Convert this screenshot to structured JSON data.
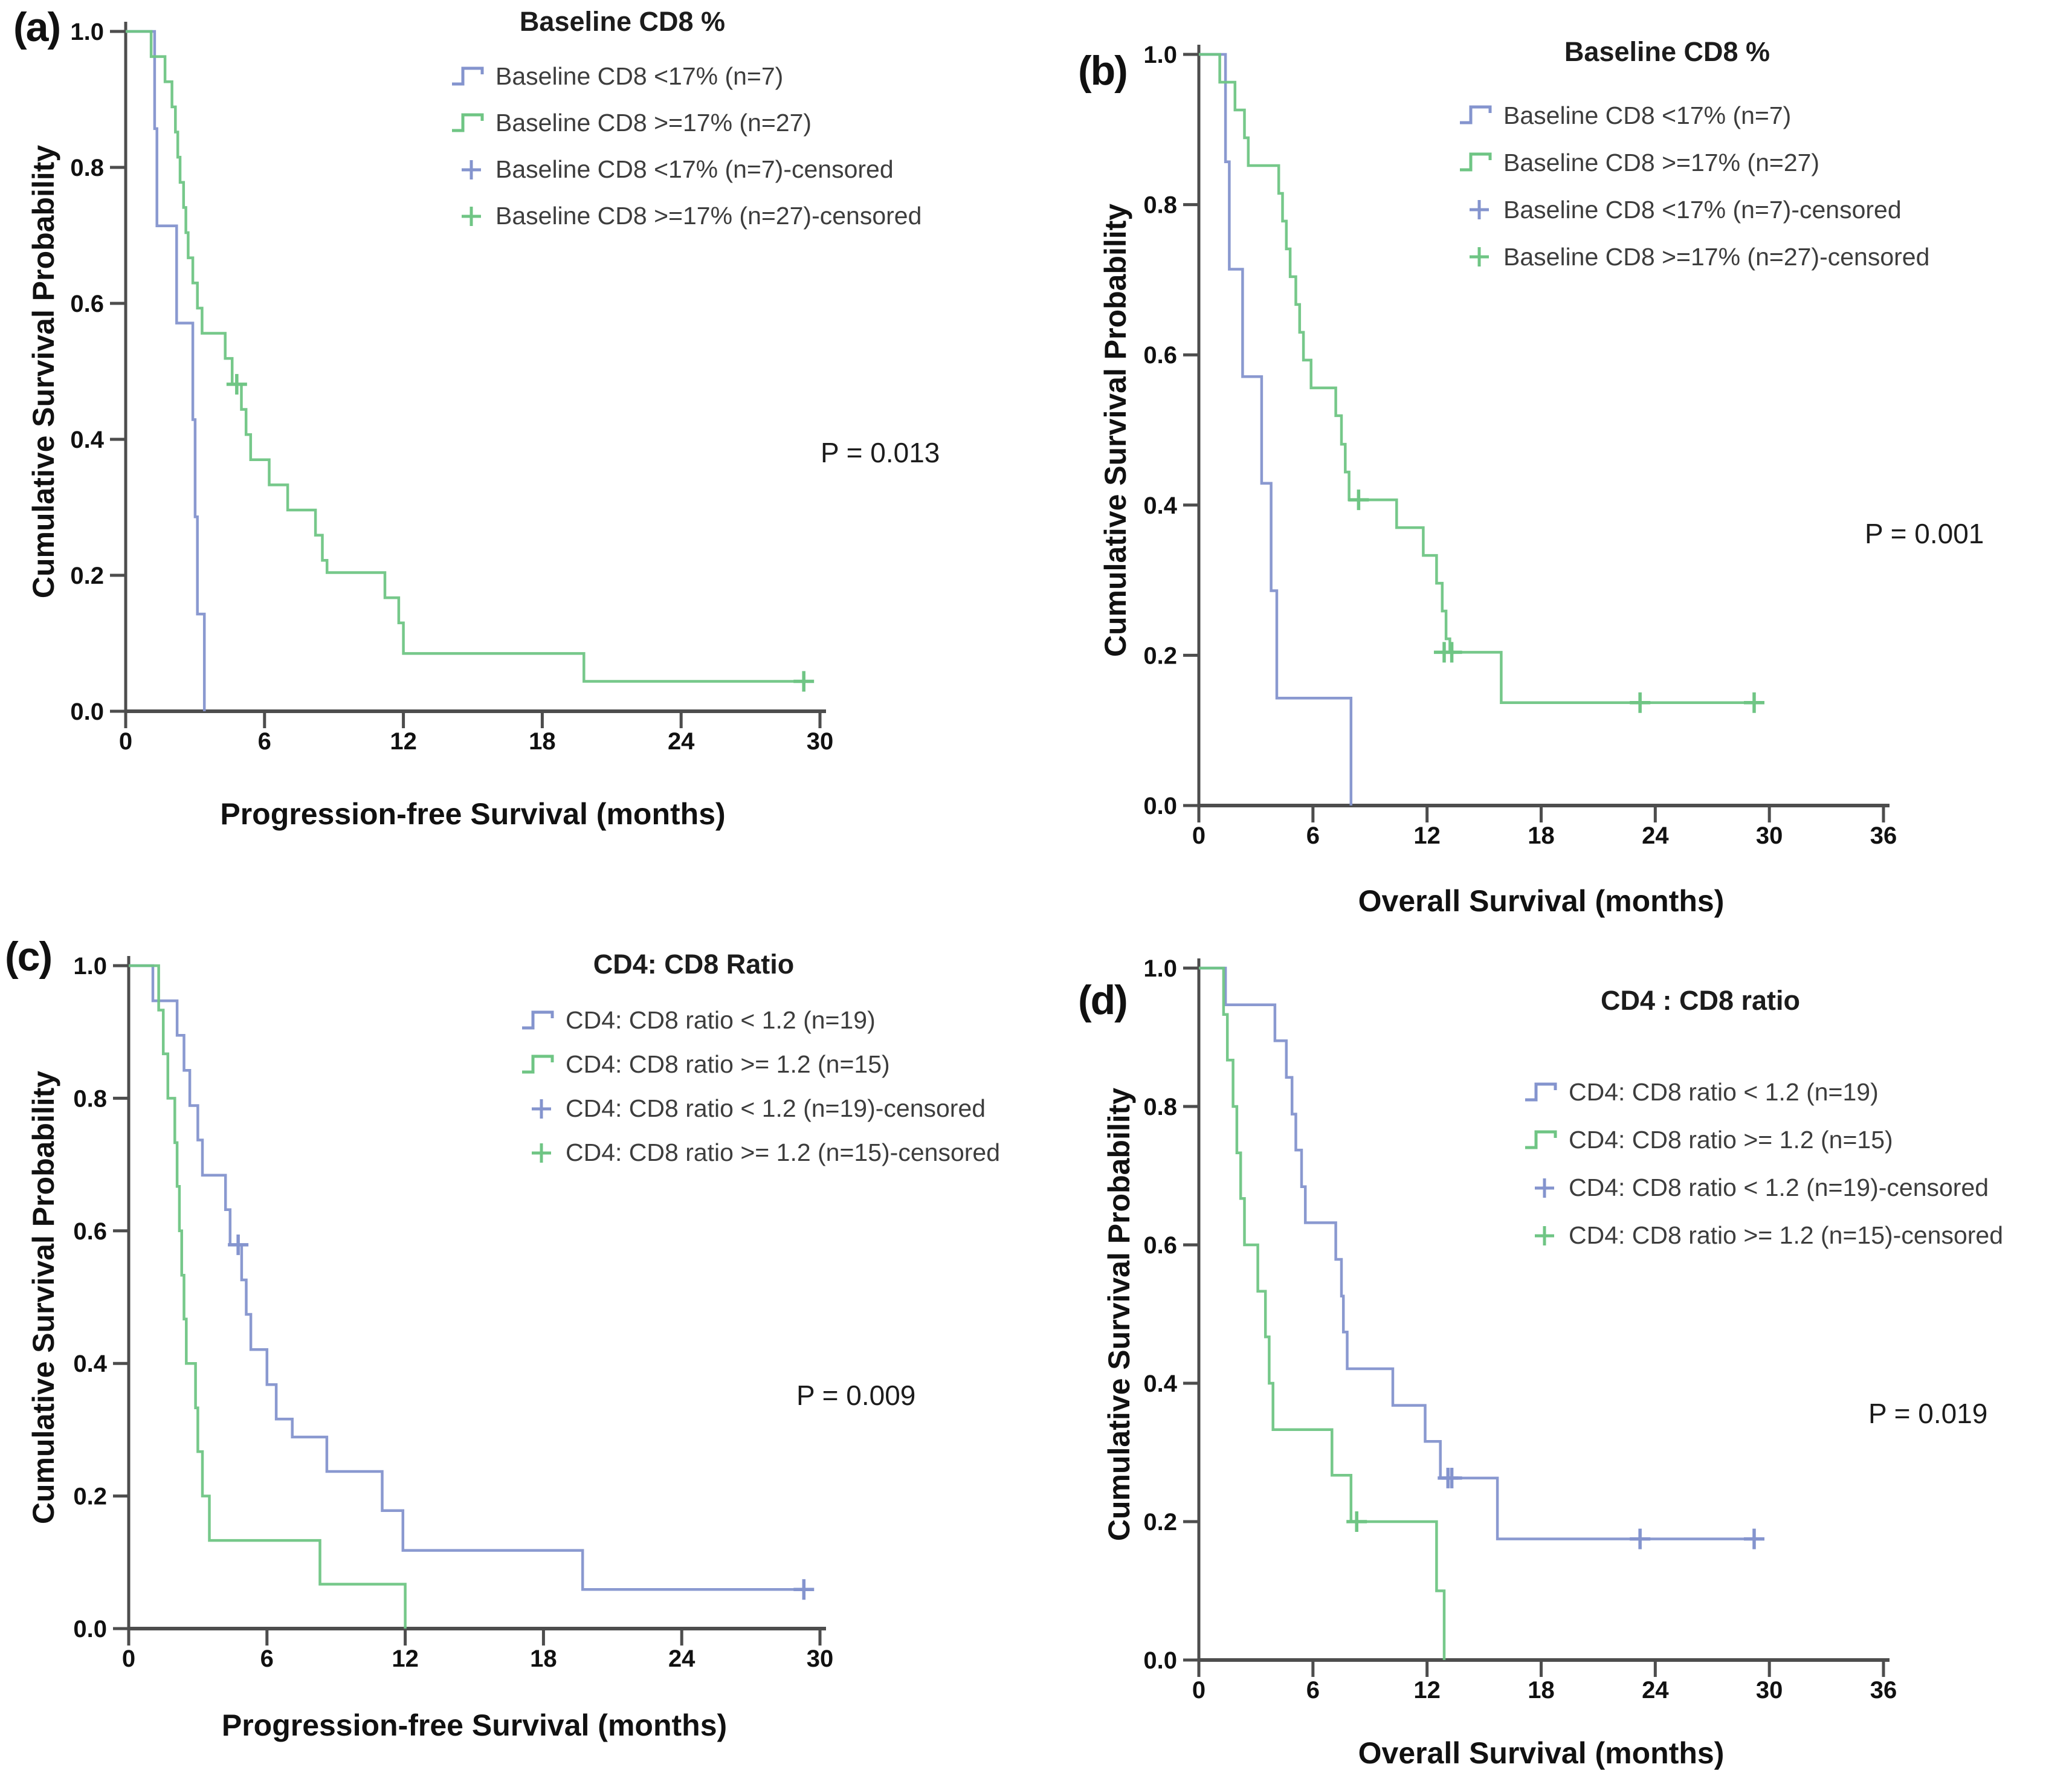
{
  "colors": {
    "blue": "#8494ce",
    "green": "#6fc584",
    "axis": "#4d4d4d",
    "tick_text": "#111111",
    "legend_text": "#3d3d3d"
  },
  "chart_data": [
    {
      "type": "line",
      "subtype": "kaplan-meier-step",
      "panel_label": "(a)",
      "title": "Baseline CD8 %",
      "p_value_label": "P = 0.013",
      "xlabel": "Progression-free Survival (months)",
      "ylabel": "Cumulative Survival Probability",
      "xlim": [
        0,
        30
      ],
      "ylim": [
        0,
        1
      ],
      "xticks": [
        "0",
        "6",
        "12",
        "18",
        "24",
        "30"
      ],
      "xtick_values": [
        0,
        6,
        12,
        18,
        24,
        30
      ],
      "yticks": [
        "0.0",
        "0.2",
        "0.4",
        "0.6",
        "0.8",
        "1.0"
      ],
      "ytick_values": [
        0,
        0.2,
        0.4,
        0.6,
        0.8,
        1.0
      ],
      "legend_position": "top-right",
      "grid": false,
      "legend": [
        {
          "label": "Baseline CD8 <17% (n=7)",
          "color_key": "blue",
          "marker": "step"
        },
        {
          "label": "Baseline CD8 >=17% (n=27)",
          "color_key": "green",
          "marker": "step"
        },
        {
          "label": "Baseline CD8 <17% (n=7)-censored",
          "color_key": "blue",
          "marker": "plus"
        },
        {
          "label": "Baseline CD8 >=17% (n=27)-censored",
          "color_key": "green",
          "marker": "plus"
        }
      ],
      "series": [
        {
          "name": "Baseline CD8 <17% (n=7)",
          "color_key": "blue",
          "start": [
            0,
            1.0
          ],
          "events": [
            [
              1.25,
              0.857
            ],
            [
              1.35,
              0.714
            ],
            [
              2.2,
              0.571
            ],
            [
              2.9,
              0.429
            ],
            [
              3.0,
              0.286
            ],
            [
              3.1,
              0.143
            ],
            [
              3.4,
              0.0
            ]
          ],
          "end_x": 3.4,
          "censored": []
        },
        {
          "name": "Baseline CD8 >=17% (n=27)",
          "color_key": "green",
          "start": [
            0,
            1.0
          ],
          "events": [
            [
              1.1,
              0.963
            ],
            [
              1.7,
              0.926
            ],
            [
              2.0,
              0.889
            ],
            [
              2.15,
              0.852
            ],
            [
              2.25,
              0.815
            ],
            [
              2.35,
              0.778
            ],
            [
              2.5,
              0.741
            ],
            [
              2.6,
              0.704
            ],
            [
              2.7,
              0.667
            ],
            [
              2.9,
              0.63
            ],
            [
              3.1,
              0.593
            ],
            [
              3.3,
              0.556
            ],
            [
              4.3,
              0.519
            ],
            [
              4.6,
              0.481
            ],
            [
              5.0,
              0.444
            ],
            [
              5.2,
              0.407
            ],
            [
              5.4,
              0.37
            ],
            [
              6.2,
              0.333
            ],
            [
              7.0,
              0.296
            ],
            [
              8.2,
              0.259
            ],
            [
              8.5,
              0.222
            ],
            [
              8.7,
              0.204
            ],
            [
              11.2,
              0.167
            ],
            [
              11.8,
              0.13
            ],
            [
              12.0,
              0.085
            ],
            [
              19.8,
              0.044
            ]
          ],
          "end_x": 29.5,
          "censored": [
            [
              4.8,
              0.481
            ],
            [
              29.3,
              0.044
            ]
          ]
        }
      ]
    },
    {
      "type": "line",
      "subtype": "kaplan-meier-step",
      "panel_label": "(b)",
      "title": "Baseline CD8 %",
      "p_value_label": "P = 0.001",
      "xlabel": "Overall Survival (months)",
      "ylabel": "Cumulative Survival Probability",
      "xlim": [
        0,
        36
      ],
      "ylim": [
        0,
        1
      ],
      "xticks": [
        "0",
        "6",
        "12",
        "18",
        "24",
        "30",
        "36"
      ],
      "xtick_values": [
        0,
        6,
        12,
        18,
        24,
        30,
        36
      ],
      "yticks": [
        "0.0",
        "0.2",
        "0.4",
        "0.6",
        "0.8",
        "1.0"
      ],
      "ytick_values": [
        0,
        0.2,
        0.4,
        0.6,
        0.8,
        1.0
      ],
      "legend_position": "top-right",
      "grid": false,
      "legend": [
        {
          "label": "Baseline CD8 <17% (n=7)",
          "color_key": "blue",
          "marker": "step"
        },
        {
          "label": "Baseline CD8 >=17% (n=27)",
          "color_key": "green",
          "marker": "step"
        },
        {
          "label": "Baseline CD8 <17% (n=7)-censored",
          "color_key": "blue",
          "marker": "plus"
        },
        {
          "label": "Baseline CD8 >=17% (n=27)-censored",
          "color_key": "green",
          "marker": "plus"
        }
      ],
      "series": [
        {
          "name": "Baseline CD8 <17% (n=7)",
          "color_key": "blue",
          "start": [
            0,
            1.0
          ],
          "events": [
            [
              1.4,
              0.857
            ],
            [
              1.6,
              0.714
            ],
            [
              2.3,
              0.571
            ],
            [
              3.3,
              0.429
            ],
            [
              3.8,
              0.286
            ],
            [
              4.1,
              0.143
            ],
            [
              8.0,
              0.0
            ]
          ],
          "end_x": 8.0,
          "censored": []
        },
        {
          "name": "Baseline CD8 >=17% (n=27)",
          "color_key": "green",
          "start": [
            0,
            1.0
          ],
          "events": [
            [
              1.1,
              0.963
            ],
            [
              1.9,
              0.926
            ],
            [
              2.4,
              0.889
            ],
            [
              2.6,
              0.852
            ],
            [
              4.2,
              0.815
            ],
            [
              4.4,
              0.778
            ],
            [
              4.6,
              0.741
            ],
            [
              4.8,
              0.704
            ],
            [
              5.1,
              0.667
            ],
            [
              5.3,
              0.63
            ],
            [
              5.5,
              0.593
            ],
            [
              5.9,
              0.556
            ],
            [
              7.2,
              0.519
            ],
            [
              7.5,
              0.481
            ],
            [
              7.7,
              0.444
            ],
            [
              7.9,
              0.407
            ],
            [
              10.4,
              0.37
            ],
            [
              11.8,
              0.333
            ],
            [
              12.5,
              0.296
            ],
            [
              12.8,
              0.259
            ],
            [
              13.0,
              0.222
            ],
            [
              13.2,
              0.204
            ],
            [
              15.9,
              0.137
            ]
          ],
          "end_x": 29.4,
          "censored": [
            [
              8.4,
              0.407
            ],
            [
              12.9,
              0.204
            ],
            [
              13.3,
              0.204
            ],
            [
              23.2,
              0.137
            ],
            [
              29.2,
              0.137
            ]
          ]
        }
      ]
    },
    {
      "type": "line",
      "subtype": "kaplan-meier-step",
      "panel_label": "(c)",
      "title": "CD4: CD8 Ratio",
      "p_value_label": "P = 0.009",
      "xlabel": "Progression-free Survival (months)",
      "ylabel": "Cumulative Survival Probability",
      "xlim": [
        0,
        30
      ],
      "ylim": [
        0,
        1
      ],
      "xticks": [
        "0",
        "6",
        "12",
        "18",
        "24",
        "30"
      ],
      "xtick_values": [
        0,
        6,
        12,
        18,
        24,
        30
      ],
      "yticks": [
        "0.0",
        "0.2",
        "0.4",
        "0.6",
        "0.8",
        "1.0"
      ],
      "ytick_values": [
        0,
        0.2,
        0.4,
        0.6,
        0.8,
        1.0
      ],
      "legend_position": "top-right",
      "grid": false,
      "legend": [
        {
          "label": "CD4: CD8 ratio < 1.2 (n=19)",
          "color_key": "blue",
          "marker": "step"
        },
        {
          "label": "CD4: CD8 ratio >= 1.2 (n=15)",
          "color_key": "green",
          "marker": "step"
        },
        {
          "label": "CD4: CD8 ratio < 1.2 (n=19)-censored",
          "color_key": "blue",
          "marker": "plus"
        },
        {
          "label": "CD4: CD8 ratio >= 1.2 (n=15)-censored",
          "color_key": "green",
          "marker": "plus"
        }
      ],
      "series": [
        {
          "name": "CD4: CD8 ratio < 1.2 (n=19)",
          "color_key": "blue",
          "start": [
            0,
            1.0
          ],
          "events": [
            [
              1.05,
              0.947
            ],
            [
              2.1,
              0.895
            ],
            [
              2.4,
              0.842
            ],
            [
              2.65,
              0.789
            ],
            [
              3.0,
              0.737
            ],
            [
              3.2,
              0.684
            ],
            [
              4.2,
              0.632
            ],
            [
              4.4,
              0.579
            ],
            [
              4.9,
              0.526
            ],
            [
              5.1,
              0.474
            ],
            [
              5.3,
              0.421
            ],
            [
              6.0,
              0.368
            ],
            [
              6.4,
              0.316
            ],
            [
              7.1,
              0.289
            ],
            [
              8.6,
              0.237
            ],
            [
              11.0,
              0.178
            ],
            [
              11.9,
              0.118
            ],
            [
              19.7,
              0.059
            ]
          ],
          "end_x": 29.4,
          "censored": [
            [
              4.75,
              0.579
            ],
            [
              29.3,
              0.059
            ]
          ]
        },
        {
          "name": "CD4: CD8 ratio >= 1.2 (n=15)",
          "color_key": "green",
          "start": [
            0,
            1.0
          ],
          "events": [
            [
              1.3,
              0.933
            ],
            [
              1.5,
              0.867
            ],
            [
              1.7,
              0.8
            ],
            [
              2.0,
              0.733
            ],
            [
              2.1,
              0.667
            ],
            [
              2.2,
              0.6
            ],
            [
              2.3,
              0.533
            ],
            [
              2.4,
              0.467
            ],
            [
              2.5,
              0.4
            ],
            [
              2.9,
              0.333
            ],
            [
              3.0,
              0.267
            ],
            [
              3.2,
              0.2
            ],
            [
              3.5,
              0.133
            ],
            [
              8.3,
              0.067
            ],
            [
              12.0,
              0.0
            ]
          ],
          "end_x": 12.0,
          "censored": []
        }
      ]
    },
    {
      "type": "line",
      "subtype": "kaplan-meier-step",
      "panel_label": "(d)",
      "title": "CD4 : CD8 ratio",
      "p_value_label": "P = 0.019",
      "xlabel": "Overall Survival (months)",
      "ylabel": "Cumulative Survival Probability",
      "xlim": [
        0,
        36
      ],
      "ylim": [
        0,
        1
      ],
      "xticks": [
        "0",
        "6",
        "12",
        "18",
        "24",
        "30",
        "36"
      ],
      "xtick_values": [
        0,
        6,
        12,
        18,
        24,
        30,
        36
      ],
      "yticks": [
        "0.0",
        "0.2",
        "0.4",
        "0.6",
        "0.8",
        "1.0"
      ],
      "ytick_values": [
        0,
        0.2,
        0.4,
        0.6,
        0.8,
        1.0
      ],
      "legend_position": "top-right",
      "grid": false,
      "legend": [
        {
          "label": "CD4: CD8 ratio < 1.2 (n=19)",
          "color_key": "blue",
          "marker": "step"
        },
        {
          "label": "CD4: CD8 ratio >= 1.2 (n=15)",
          "color_key": "green",
          "marker": "step"
        },
        {
          "label": "CD4: CD8 ratio < 1.2 (n=19)-censored",
          "color_key": "blue",
          "marker": "plus"
        },
        {
          "label": "CD4: CD8 ratio >= 1.2 (n=15)-censored",
          "color_key": "green",
          "marker": "plus"
        }
      ],
      "series": [
        {
          "name": "CD4: CD8 ratio < 1.2 (n=19)",
          "color_key": "blue",
          "start": [
            0,
            1.0
          ],
          "events": [
            [
              1.4,
              0.947
            ],
            [
              4.0,
              0.895
            ],
            [
              4.6,
              0.842
            ],
            [
              4.9,
              0.789
            ],
            [
              5.1,
              0.737
            ],
            [
              5.4,
              0.684
            ],
            [
              5.6,
              0.632
            ],
            [
              7.2,
              0.579
            ],
            [
              7.5,
              0.526
            ],
            [
              7.6,
              0.474
            ],
            [
              7.8,
              0.421
            ],
            [
              10.2,
              0.368
            ],
            [
              11.9,
              0.316
            ],
            [
              12.7,
              0.263
            ],
            [
              15.7,
              0.175
            ]
          ],
          "end_x": 29.4,
          "censored": [
            [
              13.1,
              0.263
            ],
            [
              13.3,
              0.263
            ],
            [
              23.2,
              0.175
            ],
            [
              29.2,
              0.175
            ]
          ]
        },
        {
          "name": "CD4: CD8 ratio >= 1.2 (n=15)",
          "color_key": "green",
          "start": [
            0,
            1.0
          ],
          "events": [
            [
              1.3,
              0.933
            ],
            [
              1.5,
              0.867
            ],
            [
              1.8,
              0.8
            ],
            [
              2.0,
              0.733
            ],
            [
              2.2,
              0.667
            ],
            [
              2.4,
              0.6
            ],
            [
              3.1,
              0.533
            ],
            [
              3.5,
              0.467
            ],
            [
              3.7,
              0.4
            ],
            [
              3.9,
              0.333
            ],
            [
              7.0,
              0.267
            ],
            [
              8.0,
              0.2
            ],
            [
              12.5,
              0.1
            ],
            [
              12.9,
              0.0
            ]
          ],
          "end_x": 12.9,
          "censored": [
            [
              8.3,
              0.2
            ]
          ]
        }
      ]
    }
  ]
}
